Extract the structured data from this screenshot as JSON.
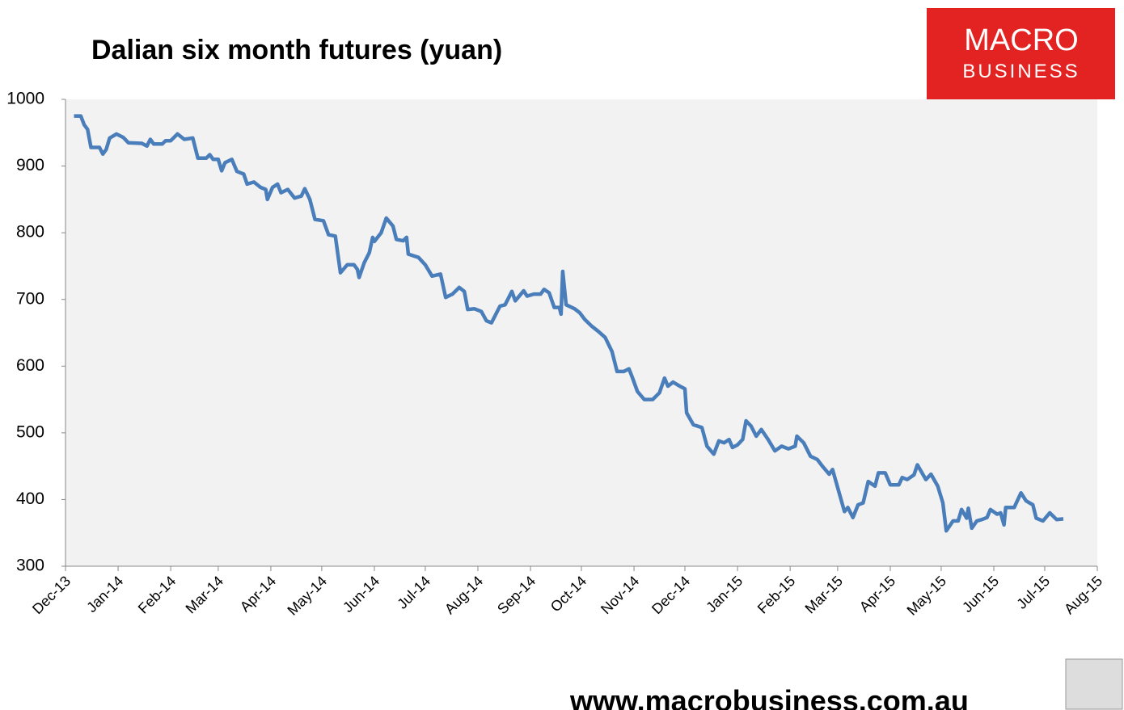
{
  "chart_data": {
    "type": "line",
    "title": "Dalian six month futures (yuan)",
    "logo": {
      "line1": "MACRO",
      "line2": "BUSINESS"
    },
    "footer": "www.macrobusiness.com.au",
    "grid": false,
    "xlim": [
      41609,
      42217
    ],
    "xticks": [
      {
        "value": 41609,
        "label": "Dec-13"
      },
      {
        "value": 41640,
        "label": "Jan-14"
      },
      {
        "value": 41671,
        "label": "Feb-14"
      },
      {
        "value": 41699,
        "label": "Mar-14"
      },
      {
        "value": 41730,
        "label": "Apr-14"
      },
      {
        "value": 41760,
        "label": "May-14"
      },
      {
        "value": 41791,
        "label": "Jun-14"
      },
      {
        "value": 41821,
        "label": "Jul-14"
      },
      {
        "value": 41852,
        "label": "Aug-14"
      },
      {
        "value": 41883,
        "label": "Sep-14"
      },
      {
        "value": 41913,
        "label": "Oct-14"
      },
      {
        "value": 41944,
        "label": "Nov-14"
      },
      {
        "value": 41974,
        "label": "Dec-14"
      },
      {
        "value": 42005,
        "label": "Jan-15"
      },
      {
        "value": 42036,
        "label": "Feb-15"
      },
      {
        "value": 42064,
        "label": "Mar-15"
      },
      {
        "value": 42095,
        "label": "Apr-15"
      },
      {
        "value": 42125,
        "label": "May-15"
      },
      {
        "value": 42156,
        "label": "Jun-15"
      },
      {
        "value": 42186,
        "label": "Jul-15"
      },
      {
        "value": 42217,
        "label": "Aug-15"
      }
    ],
    "ylim": [
      300,
      1000
    ],
    "yticks": [
      300,
      400,
      500,
      600,
      700,
      800,
      900,
      1000
    ],
    "x": [
      41614,
      41618,
      41620,
      41622,
      41624,
      41629,
      41631,
      41633,
      41635,
      41639,
      41643,
      41646,
      41654,
      41657,
      41659,
      41661,
      41666,
      41668,
      41671,
      41675,
      41679,
      41684,
      41687,
      41692,
      41694,
      41696,
      41699,
      41701,
      41703,
      41707,
      41710,
      41714,
      41716,
      41720,
      41724,
      41727,
      41728,
      41731,
      41734,
      41736,
      41740,
      41744,
      41748,
      41750,
      41753,
      41756,
      41761,
      41764,
      41768,
      41771,
      41775,
      41779,
      41781,
      41782,
      41785,
      41788,
      41790,
      41791,
      41795,
      41798,
      41802,
      41804,
      41808,
      41810,
      41811,
      41817,
      41821,
      41825,
      41830,
      41833,
      41837,
      41841,
      41844,
      41846,
      41850,
      41854,
      41857,
      41860,
      41865,
      41868,
      41872,
      41874,
      41879,
      41881,
      41885,
      41889,
      41891,
      41894,
      41897,
      41900,
      41901,
      41902,
      41904,
      41909,
      41912,
      41915,
      41919,
      41923,
      41927,
      41931,
      41934,
      41938,
      41941,
      41943,
      41946,
      41950,
      41955,
      41959,
      41962,
      41964,
      41967,
      41971,
      41974,
      41975,
      41979,
      41984,
      41987,
      41991,
      41994,
      41997,
      42000,
      42002,
      42005,
      42008,
      42010,
      42013,
      42016,
      42019,
      42023,
      42027,
      42031,
      42035,
      42039,
      42040,
      42044,
      42048,
      42052,
      42055,
      42059,
      42061,
      42064,
      42068,
      42070,
      42073,
      42076,
      42079,
      42082,
      42086,
      42088,
      42092,
      42095,
      42100,
      42102,
      42105,
      42109,
      42111,
      42116,
      42119,
      42123,
      42126,
      42128,
      42132,
      42135,
      42137,
      42140,
      42141,
      42143,
      42146,
      42149,
      42152,
      42154,
      42158,
      42160,
      42162,
      42163,
      42168,
      42172,
      42175,
      42179,
      42181,
      42185,
      42189,
      42193,
      42197
    ],
    "series": [
      {
        "color": "#4a7ebb",
        "values": [
          975,
          975,
          962,
          955,
          928,
          928,
          918,
          925,
          942,
          948,
          943,
          935,
          934,
          930,
          940,
          933,
          933,
          938,
          938,
          948,
          940,
          942,
          912,
          912,
          917,
          910,
          910,
          893,
          905,
          910,
          892,
          888,
          873,
          876,
          868,
          865,
          850,
          868,
          873,
          860,
          865,
          852,
          855,
          866,
          850,
          820,
          818,
          797,
          795,
          740,
          752,
          752,
          745,
          733,
          755,
          770,
          793,
          787,
          800,
          822,
          810,
          790,
          788,
          793,
          768,
          763,
          752,
          735,
          738,
          703,
          708,
          718,
          712,
          685,
          686,
          682,
          668,
          665,
          690,
          692,
          712,
          698,
          713,
          705,
          708,
          708,
          715,
          710,
          688,
          688,
          678,
          742,
          692,
          686,
          680,
          670,
          660,
          652,
          643,
          622,
          592,
          592,
          596,
          583,
          562,
          550,
          550,
          560,
          582,
          570,
          576,
          570,
          566,
          530,
          512,
          508,
          480,
          468,
          488,
          485,
          490,
          478,
          482,
          490,
          518,
          510,
          495,
          505,
          490,
          473,
          480,
          476,
          480,
          495,
          485,
          465,
          460,
          450,
          438,
          445,
          418,
          382,
          388,
          373,
          392,
          395,
          427,
          420,
          440,
          440,
          422,
          422,
          433,
          430,
          437,
          452,
          430,
          438,
          420,
          395,
          353,
          368,
          368,
          385,
          372,
          387,
          357,
          368,
          370,
          373,
          385,
          378,
          380,
          362,
          388,
          388,
          410,
          398,
          392,
          372,
          368,
          380,
          370,
          371
        ]
      }
    ]
  }
}
